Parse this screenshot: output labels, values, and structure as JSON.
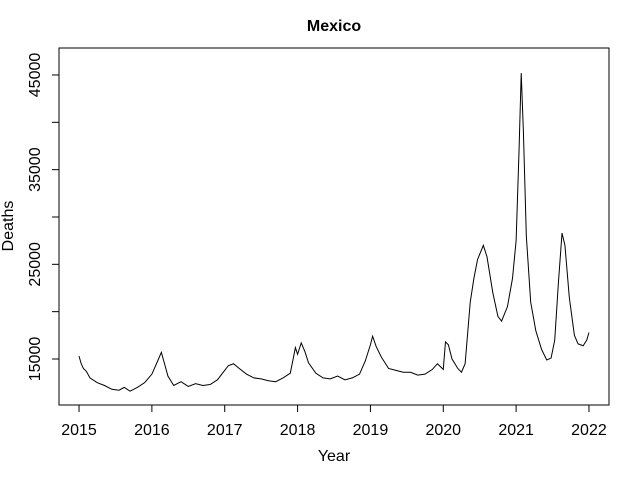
{
  "chart_data": {
    "type": "line",
    "title": "Mexico",
    "xlabel": "Year",
    "ylabel": "Deaths",
    "xlim": [
      2014.725,
      2022.275
    ],
    "ylim": [
      10140,
      47850
    ],
    "xticks": [
      2015,
      2016,
      2017,
      2018,
      2019,
      2020,
      2021,
      2022
    ],
    "yticks": [
      15000,
      {
        "value": 20000,
        "label": null
      },
      25000,
      {
        "value": 30000,
        "label": null
      },
      35000,
      {
        "value": 40000,
        "label": null
      },
      45000
    ],
    "grid": false,
    "series": [
      {
        "color": "#000000",
        "x": [
          2015.0,
          2015.03,
          2015.06,
          2015.1,
          2015.15,
          2015.25,
          2015.35,
          2015.45,
          2015.55,
          2015.62,
          2015.7,
          2015.8,
          2015.9,
          2016.0,
          2016.08,
          2016.13,
          2016.17,
          2016.22,
          2016.3,
          2016.4,
          2016.5,
          2016.6,
          2016.7,
          2016.8,
          2016.9,
          2017.0,
          2017.05,
          2017.12,
          2017.2,
          2017.3,
          2017.4,
          2017.5,
          2017.6,
          2017.7,
          2017.8,
          2017.9,
          2017.97,
          2018.0,
          2018.05,
          2018.1,
          2018.15,
          2018.25,
          2018.35,
          2018.45,
          2018.55,
          2018.65,
          2018.75,
          2018.85,
          2018.93,
          2019.0,
          2019.03,
          2019.08,
          2019.15,
          2019.25,
          2019.35,
          2019.45,
          2019.55,
          2019.65,
          2019.75,
          2019.85,
          2019.92,
          2020.0,
          2020.03,
          2020.07,
          2020.12,
          2020.2,
          2020.25,
          2020.3,
          2020.37,
          2020.42,
          2020.47,
          2020.55,
          2020.6,
          2020.68,
          2020.75,
          2020.8,
          2020.88,
          2020.95,
          2021.0,
          2021.04,
          2021.07,
          2021.1,
          2021.14,
          2021.2,
          2021.27,
          2021.35,
          2021.42,
          2021.48,
          2021.53,
          2021.58,
          2021.63,
          2021.67,
          2021.73,
          2021.8,
          2021.85,
          2021.92,
          2021.97,
          2022.0
        ],
        "values": [
          15300,
          14500,
          14000,
          13700,
          13000,
          12500,
          12200,
          11800,
          11700,
          12000,
          11600,
          12000,
          12500,
          13400,
          14800,
          15700,
          14600,
          13200,
          12200,
          12600,
          12100,
          12400,
          12200,
          12300,
          12800,
          13800,
          14300,
          14500,
          14000,
          13400,
          13000,
          12900,
          12700,
          12600,
          13000,
          13500,
          16200,
          15500,
          16700,
          15800,
          14600,
          13500,
          13000,
          12900,
          13200,
          12800,
          13000,
          13400,
          14800,
          16500,
          17400,
          16300,
          15200,
          14000,
          13800,
          13600,
          13600,
          13300,
          13400,
          13900,
          14500,
          13900,
          16800,
          16500,
          15000,
          14000,
          13600,
          14500,
          21000,
          23500,
          25500,
          27000,
          25800,
          22000,
          19500,
          19000,
          20500,
          23500,
          27500,
          37000,
          45200,
          39000,
          28000,
          21000,
          18000,
          16000,
          14900,
          15100,
          17000,
          23000,
          28300,
          27000,
          21500,
          17500,
          16600,
          16400,
          17000,
          17800
        ]
      }
    ]
  }
}
